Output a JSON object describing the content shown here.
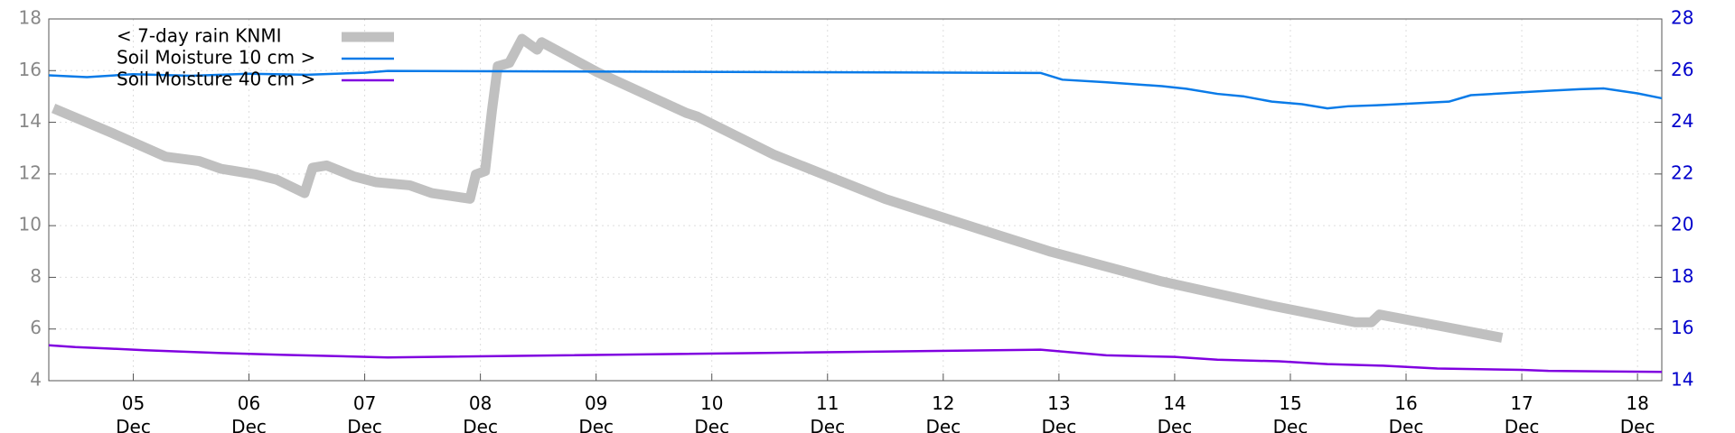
{
  "chart_data": {
    "type": "line",
    "xlim": [
      4.27,
      18.21
    ],
    "xticks": [
      {
        "value": 5,
        "label": "05 Dec"
      },
      {
        "value": 6,
        "label": "06 Dec"
      },
      {
        "value": 7,
        "label": "07 Dec"
      },
      {
        "value": 8,
        "label": "08 Dec"
      },
      {
        "value": 9,
        "label": "09 Dec"
      },
      {
        "value": 10,
        "label": "10 Dec"
      },
      {
        "value": 11,
        "label": "11 Dec"
      },
      {
        "value": 12,
        "label": "12 Dec"
      },
      {
        "value": 13,
        "label": "13 Dec"
      },
      {
        "value": 14,
        "label": "14 Dec"
      },
      {
        "value": 15,
        "label": "15 Dec"
      },
      {
        "value": 16,
        "label": "16 Dec"
      },
      {
        "value": 17,
        "label": "17 Dec"
      },
      {
        "value": 18,
        "label": "18 Dec"
      }
    ],
    "ylim": [
      4,
      18
    ],
    "yticks": [
      4,
      6,
      8,
      10,
      12,
      14,
      16,
      18
    ],
    "y2lim": [
      14,
      28
    ],
    "y2ticks": [
      14,
      16,
      18,
      20,
      22,
      24,
      26,
      28
    ],
    "grid": true,
    "legend": "upper-left",
    "series": [
      {
        "name": "< 7-day rain KNMI",
        "color": "#c0c0c0",
        "axis": "y",
        "x": [
          4.31,
          4.81,
          5.28,
          5.57,
          5.76,
          6.05,
          6.24,
          6.48,
          6.55,
          6.67,
          6.91,
          7.1,
          7.39,
          7.58,
          7.91,
          7.96,
          8.04,
          8.1,
          8.15,
          8.25,
          8.36,
          8.49,
          8.53,
          9.01,
          9.78,
          9.87,
          10.54,
          11.5,
          12.45,
          12.93,
          13.89,
          14.84,
          15.56,
          15.7,
          15.77,
          16.28,
          16.83
        ],
        "values": [
          14.54,
          13.6,
          12.67,
          12.5,
          12.2,
          11.99,
          11.78,
          11.26,
          12.24,
          12.33,
          11.9,
          11.68,
          11.56,
          11.26,
          11.04,
          11.98,
          12.11,
          14.46,
          16.17,
          16.3,
          17.23,
          16.81,
          17.1,
          15.94,
          14.36,
          14.23,
          12.74,
          11.03,
          9.67,
          8.99,
          7.84,
          6.9,
          6.26,
          6.26,
          6.56,
          6.13,
          5.66
        ]
      },
      {
        "name": "Soil Moisture 10 cm >",
        "color": "#0a7be8",
        "axis": "y2",
        "x": [
          4.27,
          4.6,
          5.0,
          5.5,
          6.0,
          6.5,
          7.0,
          7.2,
          12.84,
          13.03,
          13.4,
          13.89,
          14.1,
          14.37,
          14.6,
          14.84,
          15.1,
          15.32,
          15.5,
          15.8,
          16.37,
          16.56,
          17.23,
          17.5,
          17.71,
          18.0,
          18.21
        ],
        "values": [
          25.82,
          25.75,
          25.86,
          25.8,
          25.88,
          25.84,
          25.92,
          25.99,
          25.91,
          25.65,
          25.55,
          25.4,
          25.3,
          25.1,
          25.0,
          24.8,
          24.7,
          24.54,
          24.62,
          24.67,
          24.8,
          25.05,
          25.22,
          25.28,
          25.31,
          25.12,
          24.93
        ]
      },
      {
        "name": "Soil Moisture 40 cm >",
        "color": "#8000e0",
        "axis": "y2",
        "x": [
          4.27,
          4.5,
          4.81,
          5.1,
          5.76,
          6.3,
          7.2,
          12.84,
          13.1,
          13.41,
          14.0,
          14.37,
          14.9,
          15.32,
          15.8,
          16.27,
          17.0,
          17.23,
          18.21
        ],
        "values": [
          15.37,
          15.3,
          15.24,
          15.18,
          15.07,
          15.0,
          14.9,
          15.2,
          15.1,
          14.98,
          14.92,
          14.81,
          14.75,
          14.64,
          14.58,
          14.47,
          14.42,
          14.38,
          14.34
        ]
      }
    ]
  }
}
